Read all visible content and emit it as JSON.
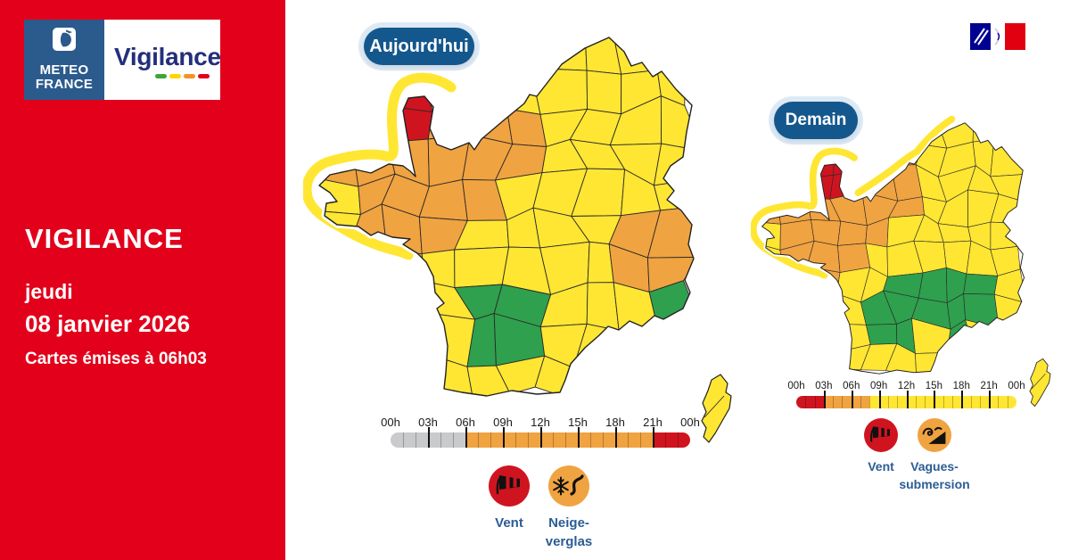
{
  "sidebar": {
    "brand": {
      "org_line1": "METEO",
      "org_line2": "FRANCE",
      "product": "Vigilance"
    },
    "title": "VIGILANCE",
    "day": "jeudi",
    "date": "08 janvier 2026",
    "issued": "Cartes émises à 06h03"
  },
  "colors": {
    "sidebar_red": "#E2001B",
    "mf_blue": "#2B5A8C",
    "vigilance_navy": "#242F7B",
    "badge_blue": "#14578C",
    "label_blue": "#2B5D93",
    "yellow": "#FFE633",
    "orange": "#F0A341",
    "red": "#CF1420",
    "green": "#2FA04D",
    "gray": "#C9CACB",
    "dash_green": "#3FA535",
    "dash_yellow": "#FFD500",
    "dash_orange": "#F39325",
    "dash_red": "#E2001A",
    "gov_blue": "#000091",
    "gov_red": "#E1000F"
  },
  "maps": {
    "today": {
      "badge": "Aujourd'hui",
      "seed": 3,
      "coastal_band": "bretagne-cotentin",
      "regions": [
        {
          "name": "nord-ouest",
          "level": "orange",
          "poly": [
            [
              0.0,
              0.2
            ],
            [
              0.18,
              0.1
            ],
            [
              0.34,
              0.08
            ],
            [
              0.44,
              0.16
            ],
            [
              0.56,
              0.18
            ],
            [
              0.63,
              0.26
            ],
            [
              0.62,
              0.4
            ],
            [
              0.47,
              0.44
            ],
            [
              0.44,
              0.58
            ],
            [
              0.34,
              0.58
            ],
            [
              0.31,
              0.7
            ],
            [
              0.17,
              0.67
            ],
            [
              0.11,
              0.48
            ],
            [
              0.0,
              0.42
            ]
          ]
        },
        {
          "name": "alpes",
          "level": "orange",
          "poly": [
            [
              0.79,
              0.5
            ],
            [
              0.97,
              0.48
            ],
            [
              0.98,
              0.66
            ],
            [
              0.8,
              0.68
            ]
          ]
        },
        {
          "name": "littoral-mediterraneen",
          "level": "orange",
          "poly": [
            [
              0.7,
              0.76
            ],
            [
              0.82,
              0.75
            ],
            [
              0.83,
              0.84
            ],
            [
              0.71,
              0.85
            ]
          ]
        },
        {
          "name": "sud-ouest",
          "level": "green",
          "poly": [
            [
              0.37,
              0.74
            ],
            [
              0.5,
              0.7
            ],
            [
              0.61,
              0.73
            ],
            [
              0.67,
              0.8
            ],
            [
              0.61,
              0.9
            ],
            [
              0.46,
              0.94
            ],
            [
              0.37,
              0.86
            ]
          ]
        },
        {
          "name": "sud-est",
          "level": "green",
          "poly": [
            [
              0.86,
              0.72
            ],
            [
              1.0,
              0.7
            ],
            [
              1.0,
              0.86
            ],
            [
              0.87,
              0.87
            ]
          ]
        },
        {
          "name": "manche",
          "level": "red",
          "poly": [
            [
              0.235,
              0.16
            ],
            [
              0.335,
              0.15
            ],
            [
              0.345,
              0.34
            ],
            [
              0.245,
              0.35
            ]
          ]
        }
      ],
      "timeline": {
        "hours": 24,
        "tick_labels": [
          "00h",
          "03h",
          "06h",
          "09h",
          "12h",
          "15h",
          "18h",
          "21h",
          "00h"
        ],
        "segments": [
          {
            "color": "gray",
            "from": 0,
            "to": 6
          },
          {
            "color": "orange",
            "from": 6,
            "to": 21
          },
          {
            "color": "red",
            "from": 21,
            "to": 24
          }
        ]
      },
      "legend": [
        {
          "id": "vent",
          "label_lines": [
            "Vent"
          ],
          "circle": "red",
          "icon": "windsock"
        },
        {
          "id": "neige-verglas",
          "label_lines": [
            "Neige-",
            "verglas"
          ],
          "circle": "orange",
          "icon": "snow-road"
        }
      ]
    },
    "tomorrow": {
      "badge": "Demain",
      "seed": 8,
      "coastal_band": "bretagne-cotentin-manche",
      "regions": [
        {
          "name": "nord-ouest",
          "level": "orange",
          "poly": [
            [
              0.0,
              0.2
            ],
            [
              0.18,
              0.1
            ],
            [
              0.3,
              0.06
            ],
            [
              0.4,
              0.0
            ],
            [
              0.66,
              0.0
            ],
            [
              0.64,
              0.14
            ],
            [
              0.56,
              0.2
            ],
            [
              0.62,
              0.28
            ],
            [
              0.61,
              0.4
            ],
            [
              0.47,
              0.45
            ],
            [
              0.44,
              0.6
            ],
            [
              0.34,
              0.6
            ],
            [
              0.3,
              0.72
            ],
            [
              0.17,
              0.67
            ],
            [
              0.11,
              0.48
            ],
            [
              0.0,
              0.42
            ]
          ]
        },
        {
          "name": "sud-centre-est",
          "level": "green",
          "poly": [
            [
              0.44,
              0.66
            ],
            [
              0.58,
              0.62
            ],
            [
              0.74,
              0.58
            ],
            [
              0.84,
              0.64
            ],
            [
              0.87,
              0.78
            ],
            [
              0.81,
              0.88
            ],
            [
              0.66,
              0.85
            ],
            [
              0.58,
              0.9
            ],
            [
              0.47,
              0.89
            ],
            [
              0.43,
              0.78
            ]
          ]
        },
        {
          "name": "manche",
          "level": "red",
          "poly": [
            [
              0.235,
              0.16
            ],
            [
              0.335,
              0.15
            ],
            [
              0.345,
              0.34
            ],
            [
              0.245,
              0.35
            ]
          ]
        }
      ],
      "timeline": {
        "hours": 24,
        "tick_labels": [
          "00h",
          "03h",
          "06h",
          "09h",
          "12h",
          "15h",
          "18h",
          "21h",
          "00h"
        ],
        "segments": [
          {
            "color": "red",
            "from": 0,
            "to": 3
          },
          {
            "color": "orange",
            "from": 3,
            "to": 8
          },
          {
            "color": "yellow",
            "from": 8,
            "to": 24
          }
        ]
      },
      "legend": [
        {
          "id": "vent",
          "label_lines": [
            "Vent"
          ],
          "circle": "red",
          "icon": "windsock"
        },
        {
          "id": "vagues-submersion",
          "label_lines": [
            "Vagues-",
            "submersion"
          ],
          "circle": "orange",
          "icon": "wave"
        }
      ]
    }
  }
}
